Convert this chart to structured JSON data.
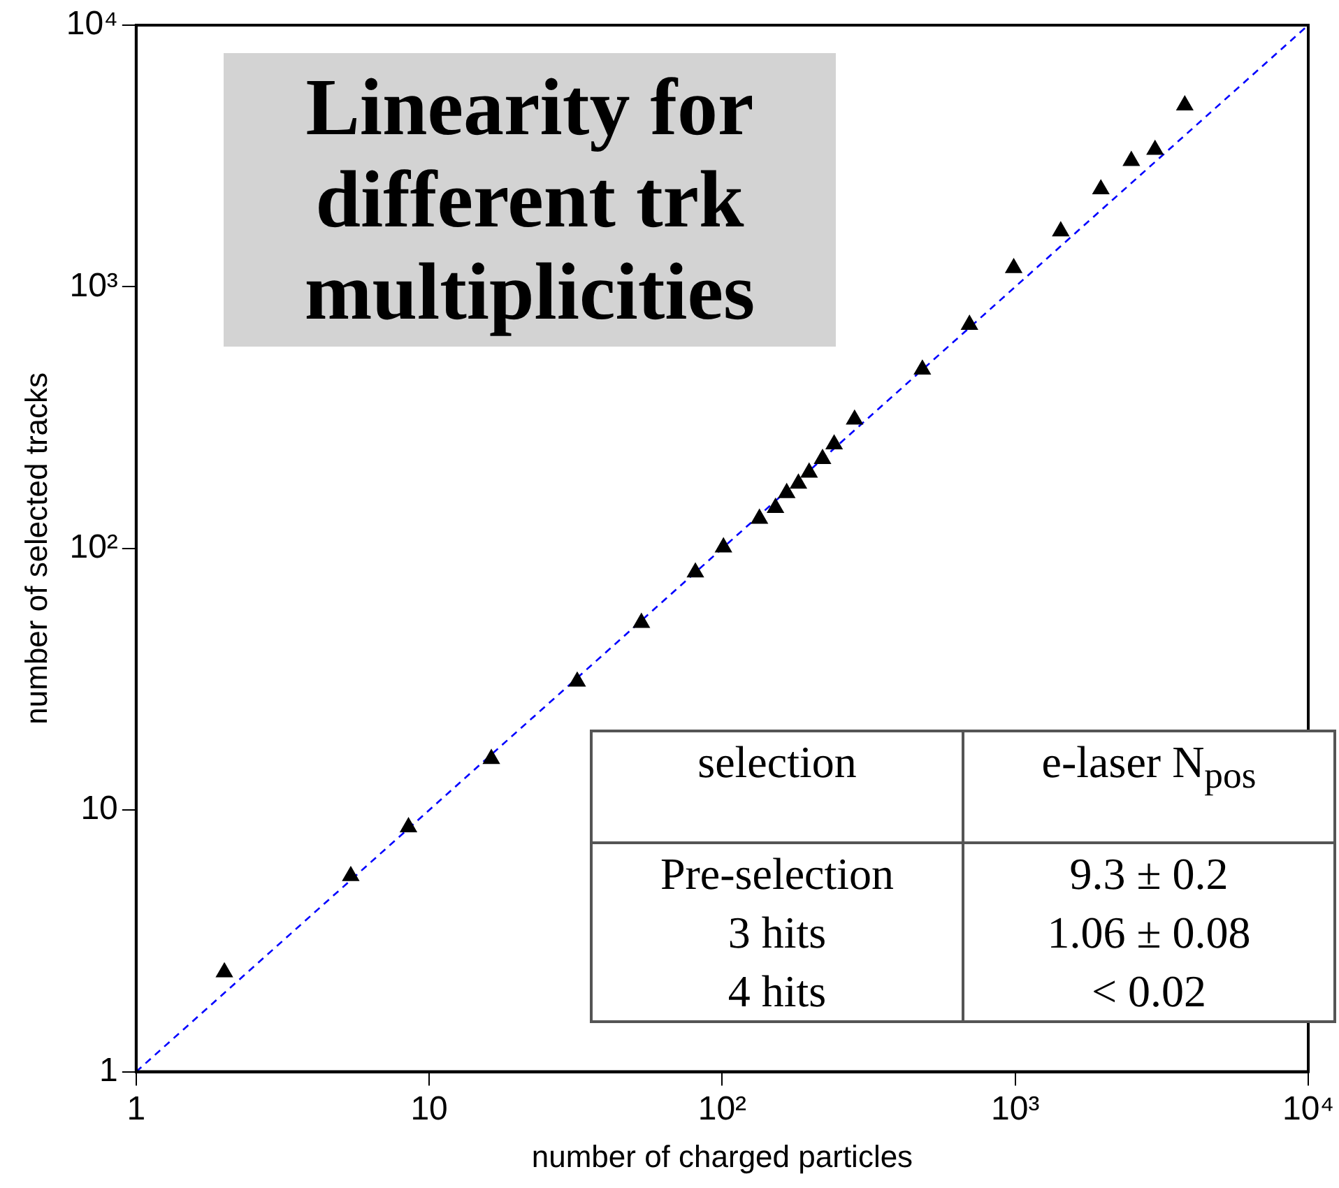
{
  "chart_data": {
    "type": "scatter",
    "title": "Linearity for different trk multiplicities",
    "xlabel": "number of charged particles",
    "ylabel": "number of selected tracks",
    "log": "xy",
    "grid": false,
    "legend": false,
    "marker": "triangle",
    "xlim": [
      1,
      10000
    ],
    "ylim": [
      1,
      10000
    ],
    "xticks": [
      1,
      10,
      {
        "value": 100,
        "label": "10²"
      },
      {
        "value": 1000,
        "label": "10³"
      },
      {
        "value": 10000,
        "label": "10⁴"
      }
    ],
    "yticks": [
      1,
      10,
      {
        "value": 100,
        "label": "10²"
      },
      {
        "value": 1000,
        "label": "10³"
      },
      {
        "value": 10000,
        "label": "10⁴"
      }
    ],
    "series": [
      {
        "color": "#000000",
        "x": [
          2.0,
          5.4,
          8.5,
          16.3,
          32,
          53,
          81,
          101,
          134,
          152,
          166,
          182,
          198,
          220,
          241,
          283,
          482,
          698,
          988,
          1430,
          1960,
          2490,
          3000,
          3790
        ],
        "values": [
          2.4,
          5.6,
          8.6,
          15.7,
          31,
          52,
          81,
          101,
          130,
          143,
          163,
          177,
          195,
          220,
          250,
          311,
          483,
          716,
          1180,
          1630,
          2360,
          3030,
          3340,
          4940
        ]
      },
      {
        "type": "line",
        "color": "#0000ff",
        "line_style": "dashed",
        "marker": "none",
        "x": [
          1,
          10000
        ],
        "values": [
          1,
          10000
        ]
      }
    ],
    "annotations": [
      "selection",
      "e-laser N$_{pos}$",
      "Pre-selection",
      "9.3 ± 0.2",
      "3 hits",
      "1.06 ± 0.08",
      "4 hits",
      "< 0.02"
    ]
  }
}
